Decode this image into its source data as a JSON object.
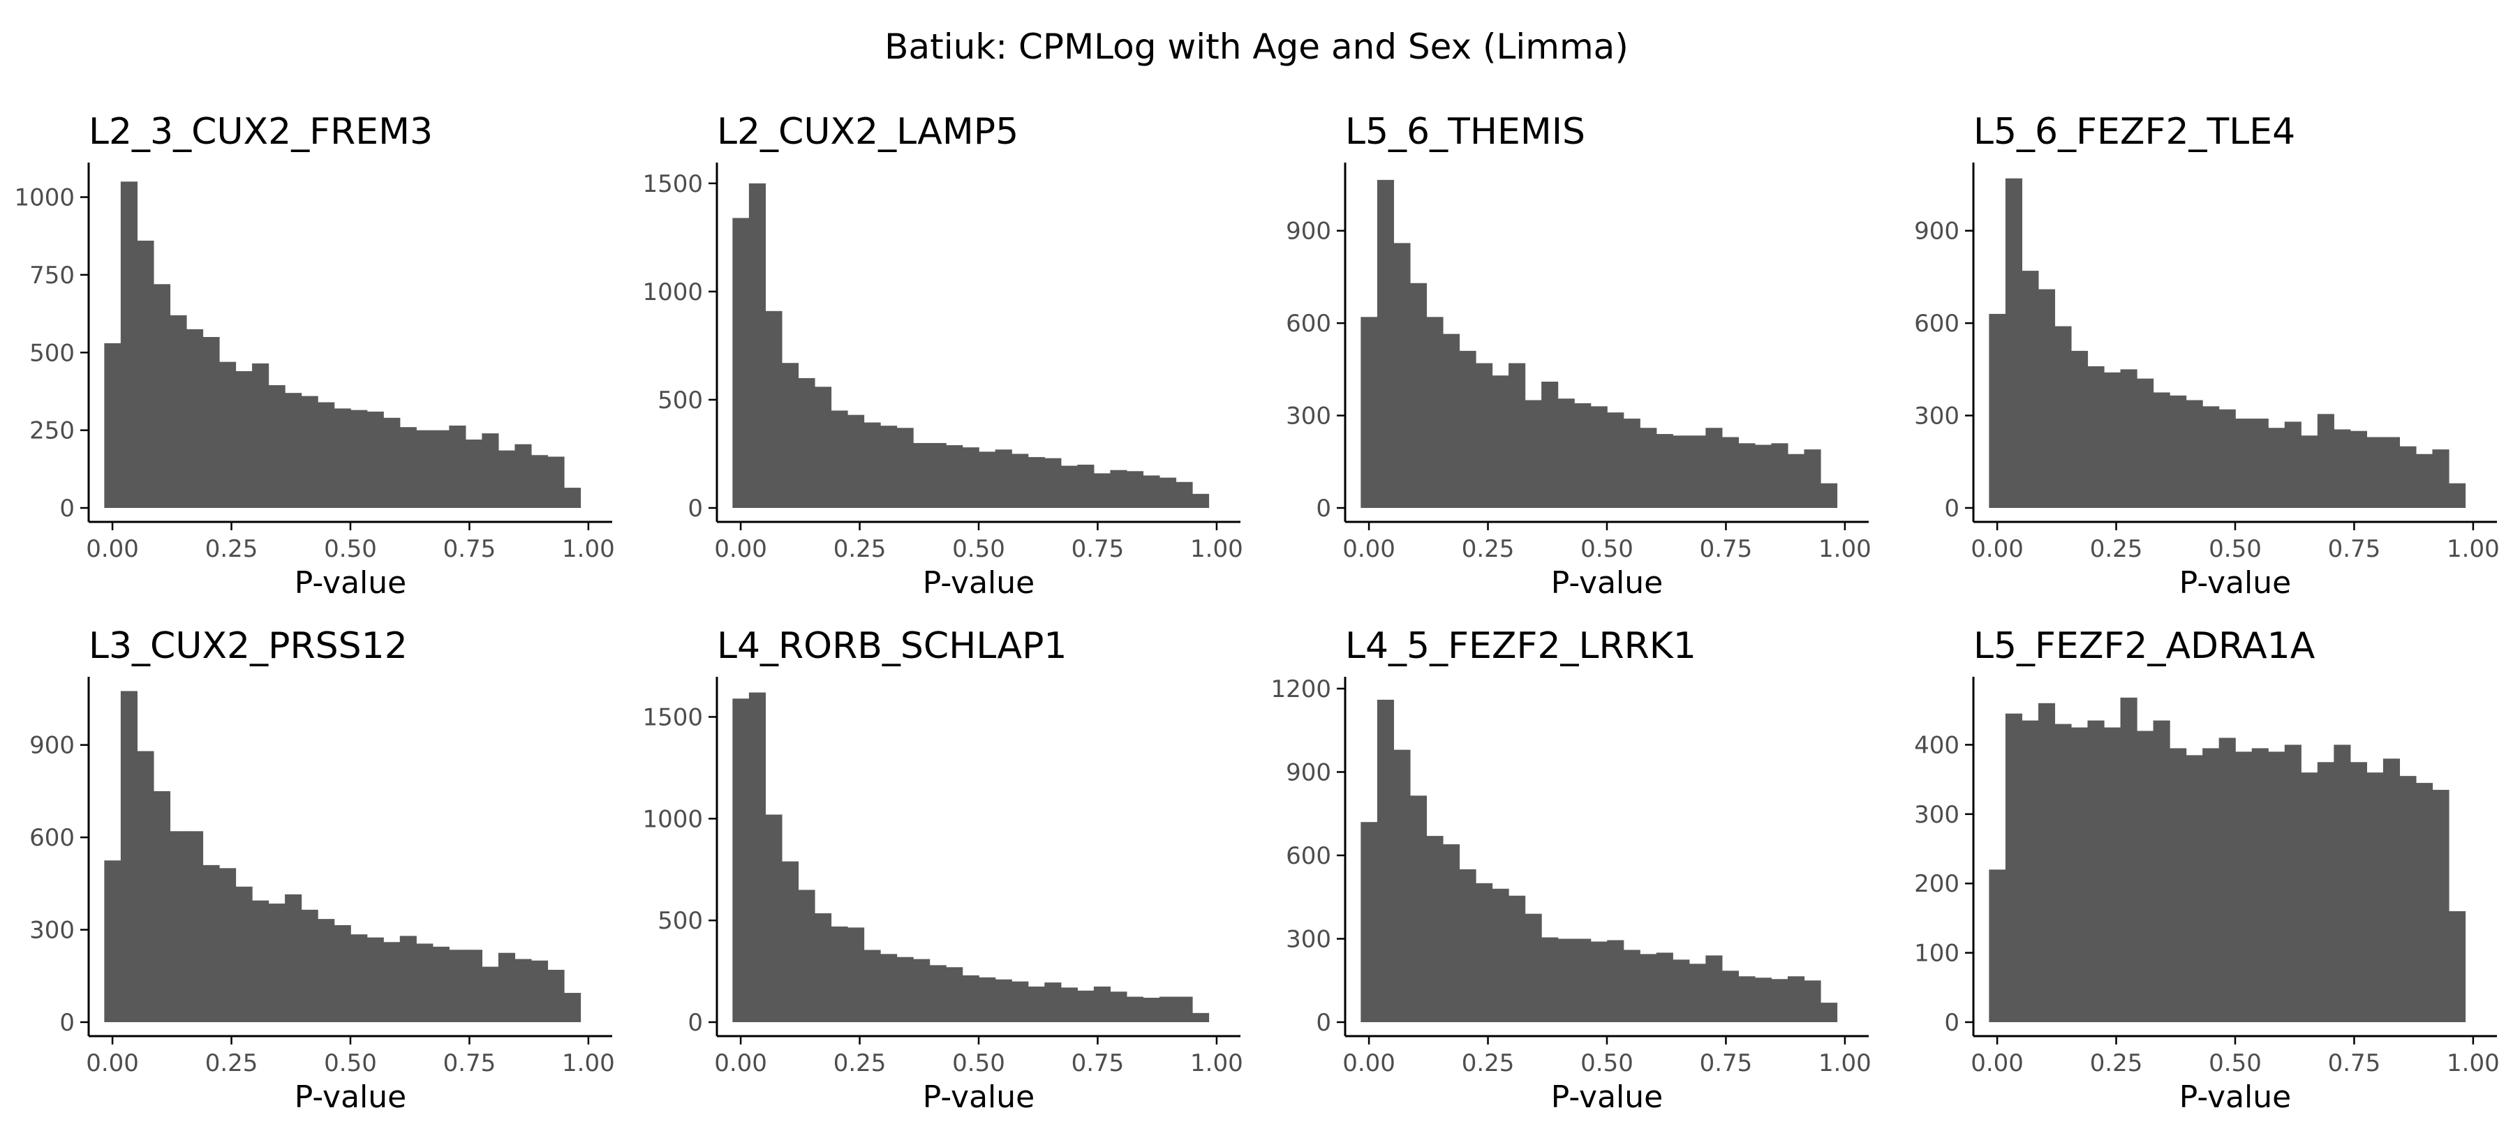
{
  "figure": {
    "title": "Batiuk: CPMLog with Age and Sex (Limma)",
    "bar_color": "#595959",
    "axis_color": "#000000",
    "tick_text_color": "#4d4d4d"
  },
  "chart_data": [
    {
      "type": "bar",
      "title": "L2_3_CUX2_FREM3",
      "xlabel": "P-value",
      "ylabel": "",
      "bin_width": 0.0345,
      "x_start": -0.0172,
      "xlim": [
        -0.05,
        1.05
      ],
      "ylim": [
        0,
        1100
      ],
      "xticks": [
        "0.00",
        "0.25",
        "0.50",
        "0.75",
        "1.00"
      ],
      "yticks": [
        0,
        250,
        500,
        750,
        1000
      ],
      "values": [
        530,
        1050,
        860,
        720,
        620,
        575,
        550,
        470,
        440,
        465,
        395,
        370,
        360,
        340,
        320,
        315,
        310,
        290,
        260,
        250,
        250,
        265,
        220,
        240,
        185,
        205,
        170,
        165,
        65
      ]
    },
    {
      "type": "bar",
      "title": "L2_CUX2_LAMP5",
      "xlabel": "P-value",
      "ylabel": "",
      "bin_width": 0.0345,
      "x_start": -0.0172,
      "xlim": [
        -0.05,
        1.05
      ],
      "ylim": [
        0,
        1580
      ],
      "xticks": [
        "0.00",
        "0.25",
        "0.50",
        "0.75",
        "1.00"
      ],
      "yticks": [
        0,
        500,
        1000,
        1500
      ],
      "values": [
        1340,
        1500,
        910,
        670,
        600,
        560,
        450,
        430,
        395,
        380,
        370,
        300,
        300,
        290,
        280,
        260,
        270,
        250,
        235,
        230,
        195,
        200,
        160,
        175,
        170,
        150,
        140,
        120,
        65
      ]
    },
    {
      "type": "bar",
      "title": "L5_6_THEMIS",
      "xlabel": "P-value",
      "ylabel": "",
      "bin_width": 0.0345,
      "x_start": -0.0172,
      "xlim": [
        -0.05,
        1.05
      ],
      "ylim": [
        0,
        1110
      ],
      "xticks": [
        "0.00",
        "0.25",
        "0.50",
        "0.75",
        "1.00"
      ],
      "yticks": [
        0,
        300,
        600,
        900
      ],
      "values": [
        620,
        1065,
        860,
        730,
        620,
        565,
        510,
        470,
        430,
        470,
        350,
        410,
        355,
        340,
        330,
        310,
        290,
        260,
        240,
        235,
        235,
        260,
        230,
        210,
        205,
        210,
        175,
        190,
        80
      ]
    },
    {
      "type": "bar",
      "title": "L5_6_FEZF2_TLE4",
      "xlabel": "P-value",
      "ylabel": "",
      "bin_width": 0.0345,
      "x_start": -0.0172,
      "xlim": [
        -0.05,
        1.05
      ],
      "ylim": [
        0,
        1110
      ],
      "xticks": [
        "0.00",
        "0.25",
        "0.50",
        "0.75",
        "1.00"
      ],
      "yticks": [
        0,
        300,
        600,
        900
      ],
      "values": [
        630,
        1070,
        770,
        710,
        590,
        510,
        460,
        440,
        450,
        420,
        375,
        365,
        350,
        330,
        320,
        290,
        290,
        260,
        280,
        235,
        305,
        255,
        250,
        230,
        230,
        200,
        175,
        190,
        80
      ]
    },
    {
      "type": "bar",
      "title": "L3_CUX2_PRSS12",
      "xlabel": "P-value",
      "ylabel": "",
      "bin_width": 0.0345,
      "x_start": -0.0172,
      "xlim": [
        -0.05,
        1.05
      ],
      "ylim": [
        0,
        1110
      ],
      "xticks": [
        "0.00",
        "0.25",
        "0.50",
        "0.75",
        "1.00"
      ],
      "yticks": [
        0,
        300,
        600,
        900
      ],
      "values": [
        525,
        1075,
        880,
        750,
        620,
        620,
        510,
        500,
        440,
        395,
        385,
        415,
        365,
        335,
        315,
        285,
        275,
        260,
        280,
        255,
        245,
        235,
        235,
        180,
        225,
        205,
        200,
        170,
        95
      ]
    },
    {
      "type": "bar",
      "title": "L4_RORB_SCHLAP1",
      "xlabel": "P-value",
      "ylabel": "",
      "bin_width": 0.0345,
      "x_start": -0.0172,
      "xlim": [
        -0.05,
        1.05
      ],
      "ylim": [
        0,
        1680
      ],
      "xticks": [
        "0.00",
        "0.25",
        "0.50",
        "0.75",
        "1.00"
      ],
      "yticks": [
        0,
        500,
        1000,
        1500
      ],
      "values": [
        1590,
        1620,
        1020,
        790,
        650,
        535,
        470,
        465,
        355,
        335,
        320,
        310,
        280,
        270,
        230,
        220,
        210,
        200,
        175,
        195,
        170,
        155,
        175,
        150,
        125,
        120,
        125,
        125,
        45
      ]
    },
    {
      "type": "bar",
      "title": "L4_5_FEZF2_LRRK1",
      "xlabel": "P-value",
      "ylabel": "",
      "bin_width": 0.0345,
      "x_start": -0.0172,
      "xlim": [
        -0.05,
        1.05
      ],
      "ylim": [
        0,
        1230
      ],
      "xticks": [
        "0.00",
        "0.25",
        "0.50",
        "0.75",
        "1.00"
      ],
      "yticks": [
        0,
        300,
        600,
        900,
        1200
      ],
      "values": [
        720,
        1160,
        980,
        815,
        670,
        640,
        550,
        500,
        480,
        455,
        390,
        305,
        300,
        300,
        290,
        295,
        260,
        245,
        250,
        225,
        210,
        240,
        185,
        165,
        160,
        155,
        165,
        150,
        70
      ]
    },
    {
      "type": "bar",
      "title": "L5_FEZF2_ADRA1A",
      "xlabel": "P-value",
      "ylabel": "",
      "bin_width": 0.0345,
      "x_start": -0.0172,
      "xlim": [
        -0.05,
        1.05
      ],
      "ylim": [
        0,
        493
      ],
      "xticks": [
        "0.00",
        "0.25",
        "0.50",
        "0.75",
        "1.00"
      ],
      "yticks": [
        0,
        100,
        200,
        300,
        400
      ],
      "values": [
        220,
        445,
        435,
        460,
        430,
        425,
        435,
        425,
        468,
        420,
        435,
        395,
        385,
        395,
        410,
        390,
        395,
        390,
        400,
        360,
        375,
        400,
        375,
        360,
        380,
        355,
        345,
        335,
        160
      ]
    }
  ]
}
